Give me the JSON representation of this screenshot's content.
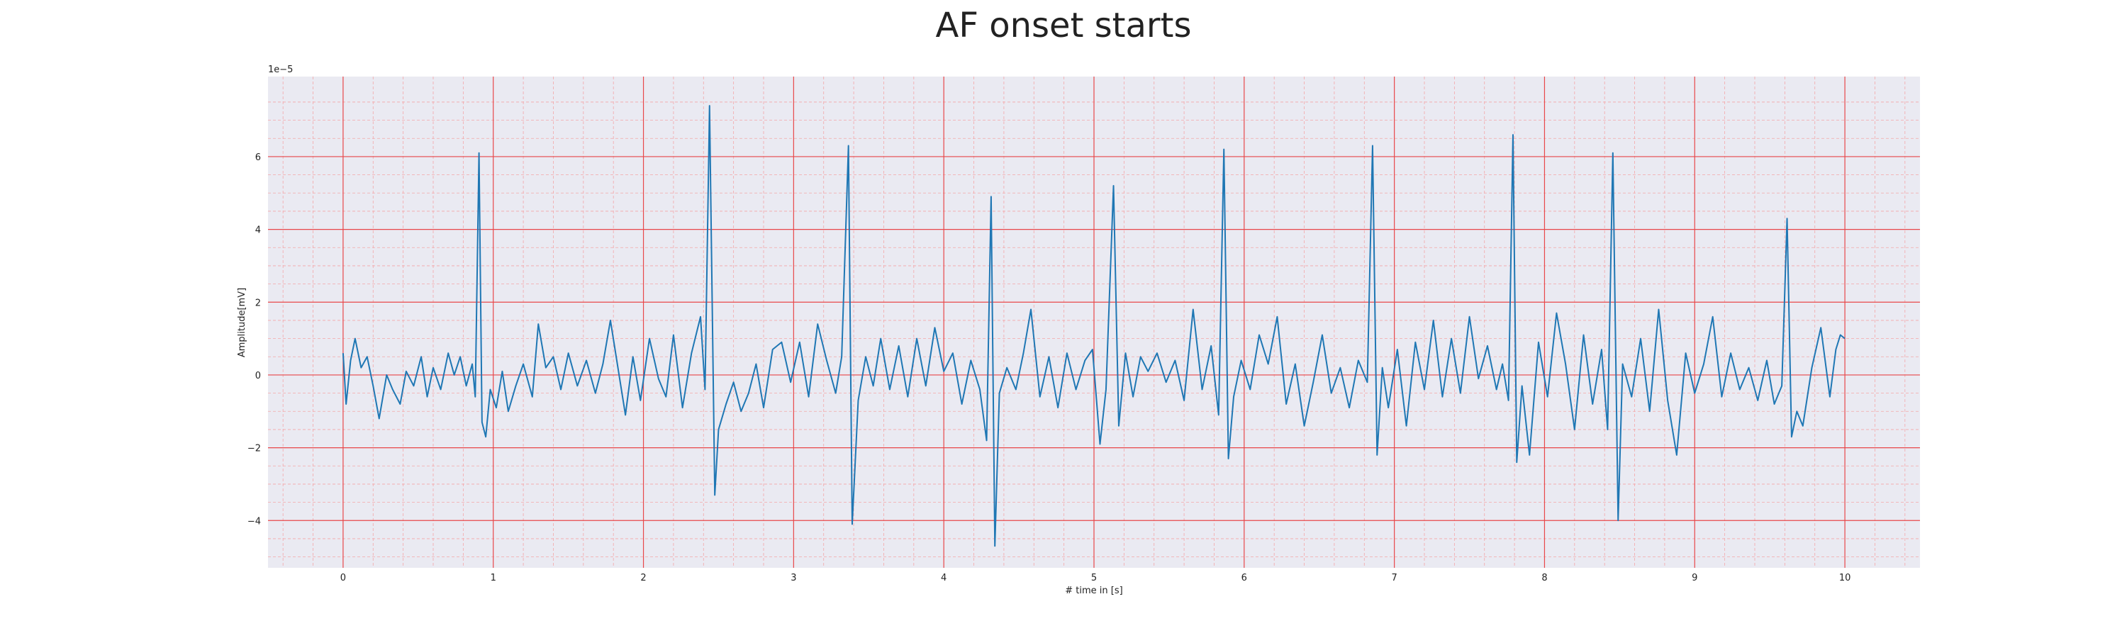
{
  "chart_data": {
    "type": "line",
    "title": "AF onset starts",
    "xlabel": "# time in [s]",
    "ylabel": "Amplitude[mV]",
    "y_offset_label": "1e−5",
    "xlim": [
      -0.5,
      10.5
    ],
    "ylim": [
      -5.3,
      8.2
    ],
    "x_ticks": [
      0,
      1,
      2,
      3,
      4,
      5,
      6,
      7,
      8,
      9,
      10
    ],
    "x_tick_labels": [
      "0",
      "1",
      "2",
      "3",
      "4",
      "5",
      "6",
      "7",
      "8",
      "9",
      "10"
    ],
    "y_ticks": [
      -4,
      -2,
      0,
      2,
      4,
      6
    ],
    "y_tick_labels": [
      "−4",
      "−2",
      "0",
      "2",
      "4",
      "6"
    ],
    "grid": "major and minor, red",
    "colors": {
      "line": "#1f77b4",
      "background": "#eaeaf2",
      "major_grid": "#e8474a",
      "minor_grid": "#f4a6a8"
    },
    "series": [
      {
        "values": [
          [
            0.0,
            0.6
          ],
          [
            0.02,
            -0.8
          ],
          [
            0.05,
            0.4
          ],
          [
            0.08,
            1.0
          ],
          [
            0.12,
            0.2
          ],
          [
            0.16,
            0.5
          ],
          [
            0.2,
            -0.3
          ],
          [
            0.24,
            -1.2
          ],
          [
            0.29,
            0.0
          ],
          [
            0.33,
            -0.4
          ],
          [
            0.38,
            -0.8
          ],
          [
            0.42,
            0.1
          ],
          [
            0.47,
            -0.3
          ],
          [
            0.52,
            0.5
          ],
          [
            0.56,
            -0.6
          ],
          [
            0.6,
            0.2
          ],
          [
            0.65,
            -0.4
          ],
          [
            0.7,
            0.6
          ],
          [
            0.74,
            0.0
          ],
          [
            0.78,
            0.5
          ],
          [
            0.82,
            -0.3
          ],
          [
            0.86,
            0.3
          ],
          [
            0.88,
            -0.6
          ],
          [
            0.905,
            6.1
          ],
          [
            0.925,
            -1.3
          ],
          [
            0.95,
            -1.7
          ],
          [
            0.98,
            -0.4
          ],
          [
            1.02,
            -0.9
          ],
          [
            1.06,
            0.1
          ],
          [
            1.1,
            -1.0
          ],
          [
            1.15,
            -0.3
          ],
          [
            1.2,
            0.3
          ],
          [
            1.26,
            -0.6
          ],
          [
            1.3,
            1.4
          ],
          [
            1.35,
            0.2
          ],
          [
            1.4,
            0.5
          ],
          [
            1.45,
            -0.4
          ],
          [
            1.5,
            0.6
          ],
          [
            1.56,
            -0.3
          ],
          [
            1.62,
            0.4
          ],
          [
            1.68,
            -0.5
          ],
          [
            1.73,
            0.3
          ],
          [
            1.78,
            1.5
          ],
          [
            1.83,
            0.2
          ],
          [
            1.88,
            -1.1
          ],
          [
            1.93,
            0.5
          ],
          [
            1.98,
            -0.7
          ],
          [
            2.04,
            1.0
          ],
          [
            2.1,
            -0.1
          ],
          [
            2.15,
            -0.6
          ],
          [
            2.2,
            1.1
          ],
          [
            2.26,
            -0.9
          ],
          [
            2.32,
            0.6
          ],
          [
            2.38,
            1.6
          ],
          [
            2.41,
            -0.4
          ],
          [
            2.44,
            7.4
          ],
          [
            2.475,
            -3.3
          ],
          [
            2.5,
            -1.5
          ],
          [
            2.55,
            -0.8
          ],
          [
            2.6,
            -0.2
          ],
          [
            2.65,
            -1.0
          ],
          [
            2.7,
            -0.5
          ],
          [
            2.75,
            0.3
          ],
          [
            2.8,
            -0.9
          ],
          [
            2.86,
            0.7
          ],
          [
            2.92,
            0.9
          ],
          [
            2.98,
            -0.2
          ],
          [
            3.04,
            0.9
          ],
          [
            3.1,
            -0.6
          ],
          [
            3.16,
            1.4
          ],
          [
            3.22,
            0.4
          ],
          [
            3.28,
            -0.5
          ],
          [
            3.32,
            0.5
          ],
          [
            3.365,
            6.3
          ],
          [
            3.39,
            -4.1
          ],
          [
            3.43,
            -0.7
          ],
          [
            3.48,
            0.5
          ],
          [
            3.53,
            -0.3
          ],
          [
            3.58,
            1.0
          ],
          [
            3.64,
            -0.4
          ],
          [
            3.7,
            0.8
          ],
          [
            3.76,
            -0.6
          ],
          [
            3.82,
            1.0
          ],
          [
            3.88,
            -0.3
          ],
          [
            3.94,
            1.3
          ],
          [
            4.0,
            0.1
          ],
          [
            4.06,
            0.6
          ],
          [
            4.12,
            -0.8
          ],
          [
            4.18,
            0.4
          ],
          [
            4.24,
            -0.4
          ],
          [
            4.285,
            -1.8
          ],
          [
            4.315,
            4.9
          ],
          [
            4.34,
            -4.7
          ],
          [
            4.37,
            -0.5
          ],
          [
            4.42,
            0.2
          ],
          [
            4.48,
            -0.4
          ],
          [
            4.53,
            0.6
          ],
          [
            4.58,
            1.8
          ],
          [
            4.64,
            -0.6
          ],
          [
            4.7,
            0.5
          ],
          [
            4.76,
            -0.9
          ],
          [
            4.82,
            0.6
          ],
          [
            4.88,
            -0.4
          ],
          [
            4.94,
            0.4
          ],
          [
            4.99,
            0.7
          ],
          [
            5.04,
            -1.9
          ],
          [
            5.08,
            -0.4
          ],
          [
            5.13,
            5.2
          ],
          [
            5.165,
            -1.4
          ],
          [
            5.21,
            0.6
          ],
          [
            5.26,
            -0.6
          ],
          [
            5.31,
            0.5
          ],
          [
            5.36,
            0.1
          ],
          [
            5.42,
            0.6
          ],
          [
            5.48,
            -0.2
          ],
          [
            5.54,
            0.4
          ],
          [
            5.6,
            -0.7
          ],
          [
            5.66,
            1.8
          ],
          [
            5.72,
            -0.4
          ],
          [
            5.78,
            0.8
          ],
          [
            5.83,
            -1.1
          ],
          [
            5.865,
            6.2
          ],
          [
            5.895,
            -2.3
          ],
          [
            5.93,
            -0.6
          ],
          [
            5.98,
            0.4
          ],
          [
            6.04,
            -0.4
          ],
          [
            6.1,
            1.1
          ],
          [
            6.16,
            0.3
          ],
          [
            6.22,
            1.6
          ],
          [
            6.28,
            -0.8
          ],
          [
            6.34,
            0.3
          ],
          [
            6.4,
            -1.4
          ],
          [
            6.46,
            -0.2
          ],
          [
            6.52,
            1.1
          ],
          [
            6.58,
            -0.5
          ],
          [
            6.64,
            0.2
          ],
          [
            6.7,
            -0.9
          ],
          [
            6.76,
            0.4
          ],
          [
            6.82,
            -0.2
          ],
          [
            6.855,
            6.3
          ],
          [
            6.885,
            -2.2
          ],
          [
            6.92,
            0.2
          ],
          [
            6.96,
            -0.9
          ],
          [
            7.02,
            0.7
          ],
          [
            7.08,
            -1.4
          ],
          [
            7.14,
            0.9
          ],
          [
            7.2,
            -0.4
          ],
          [
            7.26,
            1.5
          ],
          [
            7.32,
            -0.6
          ],
          [
            7.38,
            1.0
          ],
          [
            7.44,
            -0.5
          ],
          [
            7.5,
            1.6
          ],
          [
            7.56,
            -0.1
          ],
          [
            7.62,
            0.8
          ],
          [
            7.68,
            -0.4
          ],
          [
            7.72,
            0.3
          ],
          [
            7.76,
            -0.7
          ],
          [
            7.79,
            6.6
          ],
          [
            7.815,
            -2.4
          ],
          [
            7.85,
            -0.3
          ],
          [
            7.9,
            -2.2
          ],
          [
            7.96,
            0.9
          ],
          [
            8.02,
            -0.6
          ],
          [
            8.08,
            1.7
          ],
          [
            8.14,
            0.3
          ],
          [
            8.2,
            -1.5
          ],
          [
            8.26,
            1.1
          ],
          [
            8.32,
            -0.8
          ],
          [
            8.38,
            0.7
          ],
          [
            8.42,
            -1.5
          ],
          [
            8.455,
            6.1
          ],
          [
            8.49,
            -4.0
          ],
          [
            8.52,
            0.3
          ],
          [
            8.58,
            -0.6
          ],
          [
            8.64,
            1.0
          ],
          [
            8.7,
            -1.0
          ],
          [
            8.76,
            1.8
          ],
          [
            8.82,
            -0.7
          ],
          [
            8.88,
            -2.2
          ],
          [
            8.94,
            0.6
          ],
          [
            9.0,
            -0.5
          ],
          [
            9.06,
            0.3
          ],
          [
            9.12,
            1.6
          ],
          [
            9.18,
            -0.6
          ],
          [
            9.24,
            0.6
          ],
          [
            9.3,
            -0.4
          ],
          [
            9.36,
            0.2
          ],
          [
            9.42,
            -0.7
          ],
          [
            9.48,
            0.4
          ],
          [
            9.53,
            -0.8
          ],
          [
            9.58,
            -0.3
          ],
          [
            9.615,
            4.3
          ],
          [
            9.645,
            -1.7
          ],
          [
            9.68,
            -1.0
          ],
          [
            9.72,
            -1.4
          ],
          [
            9.78,
            0.2
          ],
          [
            9.84,
            1.3
          ],
          [
            9.9,
            -0.6
          ],
          [
            9.94,
            0.7
          ],
          [
            9.97,
            1.1
          ],
          [
            10.0,
            1.0
          ]
        ]
      }
    ]
  }
}
